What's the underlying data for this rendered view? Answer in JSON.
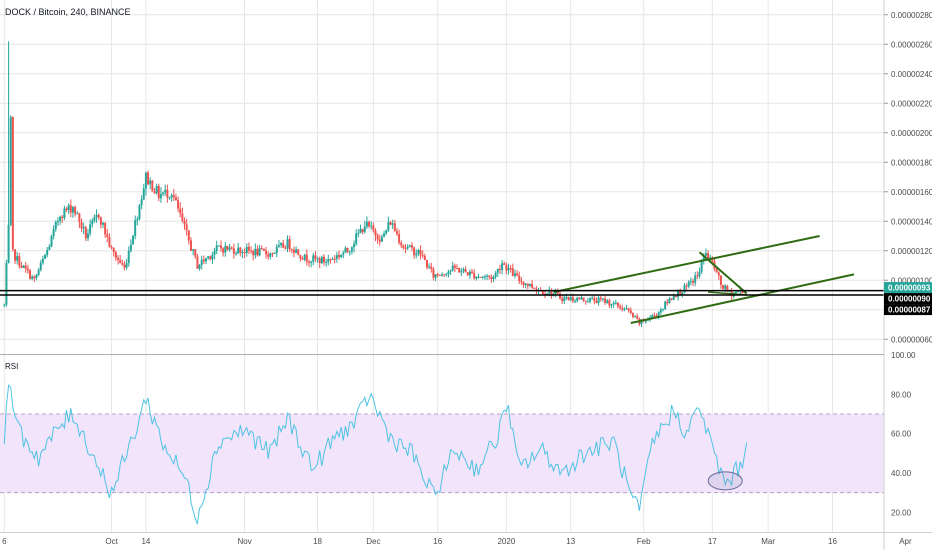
{
  "header": {
    "title": "DOCK / Bitcoin, 240, BINANCE"
  },
  "colors": {
    "up": "#26a69a",
    "down": "#ef5350",
    "grid": "#e6e6e6",
    "trendline": "#2e6b12",
    "hline": "#000000",
    "rsi_line": "#4fc3e3",
    "rsi_band": "#f1e4fb",
    "rsi_band_border": "#b8a0c8",
    "ellipse": "#6b6b9a",
    "current_tag": "#26a69a",
    "black_tag": "#000000"
  },
  "chart_data": [
    {
      "type": "candlestick",
      "title": "DOCK / Bitcoin, 240, BINANCE",
      "ylim": [
        5e-07,
        2.9e-06
      ],
      "yticks": [
        "0.00000060",
        "0.00000080",
        "0.00000100",
        "0.00000120",
        "0.00000140",
        "0.00000160",
        "0.00000180",
        "0.00000200",
        "0.00000220",
        "0.00000240",
        "0.00000260",
        "0.00000280"
      ],
      "xticks": [
        "6",
        "Oct",
        "14",
        "Nov",
        "18",
        "Dec",
        "16",
        "2020",
        "13",
        "Feb",
        "17",
        "Mar",
        "16",
        "Apr"
      ],
      "xlim_days": [
        -1,
        205
      ],
      "xtick_days": [
        0,
        25,
        33,
        56,
        73,
        86,
        101,
        117,
        132,
        149,
        165,
        178,
        193,
        210
      ],
      "keypoints": [
        {
          "t": 0,
          "p": 8.3e-07
        },
        {
          "t": 1,
          "p": 1.35e-06
        },
        {
          "t": 1.2,
          "p": 2.58e-06
        },
        {
          "t": 2,
          "p": 1.18e-06
        },
        {
          "t": 4,
          "p": 1.1e-06
        },
        {
          "t": 7,
          "p": 1e-06
        },
        {
          "t": 10,
          "p": 1.2e-06
        },
        {
          "t": 13,
          "p": 1.45e-06
        },
        {
          "t": 16,
          "p": 1.5e-06
        },
        {
          "t": 19,
          "p": 1.3e-06
        },
        {
          "t": 22,
          "p": 1.45e-06
        },
        {
          "t": 25,
          "p": 1.2e-06
        },
        {
          "t": 28,
          "p": 1.08e-06
        },
        {
          "t": 31,
          "p": 1.45e-06
        },
        {
          "t": 33,
          "p": 1.7e-06
        },
        {
          "t": 36,
          "p": 1.58e-06
        },
        {
          "t": 39,
          "p": 1.6e-06
        },
        {
          "t": 42,
          "p": 1.35e-06
        },
        {
          "t": 45,
          "p": 1.1e-06
        },
        {
          "t": 50,
          "p": 1.22e-06
        },
        {
          "t": 56,
          "p": 1.2e-06
        },
        {
          "t": 62,
          "p": 1.18e-06
        },
        {
          "t": 66,
          "p": 1.25e-06
        },
        {
          "t": 70,
          "p": 1.15e-06
        },
        {
          "t": 75,
          "p": 1.13e-06
        },
        {
          "t": 80,
          "p": 1.2e-06
        },
        {
          "t": 84,
          "p": 1.38e-06
        },
        {
          "t": 88,
          "p": 1.28e-06
        },
        {
          "t": 90,
          "p": 1.4e-06
        },
        {
          "t": 93,
          "p": 1.23e-06
        },
        {
          "t": 97,
          "p": 1.18e-06
        },
        {
          "t": 100,
          "p": 1.03e-06
        },
        {
          "t": 105,
          "p": 1.08e-06
        },
        {
          "t": 110,
          "p": 1.03e-06
        },
        {
          "t": 114,
          "p": 1.02e-06
        },
        {
          "t": 116,
          "p": 1.12e-06
        },
        {
          "t": 120,
          "p": 1e-06
        },
        {
          "t": 125,
          "p": 9.3e-07
        },
        {
          "t": 127,
          "p": 9.2e-07
        },
        {
          "t": 130,
          "p": 8.8e-07
        },
        {
          "t": 135,
          "p": 8.7e-07
        },
        {
          "t": 140,
          "p": 8.6e-07
        },
        {
          "t": 145,
          "p": 8e-07
        },
        {
          "t": 148,
          "p": 7.1e-07
        },
        {
          "t": 152,
          "p": 7.7e-07
        },
        {
          "t": 156,
          "p": 9e-07
        },
        {
          "t": 159,
          "p": 9.5e-07
        },
        {
          "t": 162,
          "p": 1.05e-06
        },
        {
          "t": 163,
          "p": 1.19e-06
        },
        {
          "t": 165,
          "p": 1.12e-06
        },
        {
          "t": 167,
          "p": 9.7e-07
        },
        {
          "t": 169,
          "p": 9.1e-07
        },
        {
          "t": 172,
          "p": 9.3e-07
        }
      ],
      "annotations": {
        "trend_upper": {
          "from": {
            "t": 128,
            "p": 9.2e-07
          },
          "to": {
            "t": 190,
            "p": 1.3e-06
          }
        },
        "trend_lower": {
          "from": {
            "t": 146,
            "p": 7.1e-07
          },
          "to": {
            "t": 198,
            "p": 1.04e-06
          }
        },
        "flag_upper": {
          "from": {
            "t": 162,
            "p": 1.19e-06
          },
          "to": {
            "t": 173,
            "p": 9.1e-07
          }
        },
        "flag_lower": {
          "from": {
            "t": 164,
            "p": 9.2e-07
          },
          "to": {
            "t": 173,
            "p": 9e-07
          }
        },
        "hlines": [
          9.3e-07,
          9e-07
        ]
      },
      "price_tags": [
        {
          "label": "0.00000093",
          "value": 9.3e-07,
          "style": "current"
        },
        {
          "label": "0.00000090",
          "value": 9e-07,
          "style": "black"
        },
        {
          "label": "0.00000087",
          "value": 8.7e-07,
          "style": "black"
        }
      ]
    },
    {
      "type": "line",
      "title": "RSI",
      "ylim": [
        10,
        100
      ],
      "yticks": [
        "20.00",
        "40.00",
        "60.00",
        "80.00",
        "100.00"
      ],
      "band": [
        30,
        70
      ],
      "ellipse_center": {
        "t": 168,
        "v": 36
      },
      "keypoints": [
        {
          "t": 0,
          "v": 55
        },
        {
          "t": 1.2,
          "v": 90
        },
        {
          "t": 3,
          "v": 62
        },
        {
          "t": 8,
          "v": 48
        },
        {
          "t": 13,
          "v": 64
        },
        {
          "t": 16,
          "v": 70
        },
        {
          "t": 20,
          "v": 52
        },
        {
          "t": 25,
          "v": 30
        },
        {
          "t": 30,
          "v": 58
        },
        {
          "t": 33,
          "v": 78
        },
        {
          "t": 37,
          "v": 55
        },
        {
          "t": 42,
          "v": 38
        },
        {
          "t": 45,
          "v": 18
        },
        {
          "t": 50,
          "v": 56
        },
        {
          "t": 56,
          "v": 62
        },
        {
          "t": 62,
          "v": 50
        },
        {
          "t": 66,
          "v": 68
        },
        {
          "t": 72,
          "v": 42
        },
        {
          "t": 77,
          "v": 58
        },
        {
          "t": 82,
          "v": 66
        },
        {
          "t": 85,
          "v": 80
        },
        {
          "t": 90,
          "v": 58
        },
        {
          "t": 95,
          "v": 50
        },
        {
          "t": 100,
          "v": 28
        },
        {
          "t": 105,
          "v": 52
        },
        {
          "t": 110,
          "v": 42
        },
        {
          "t": 115,
          "v": 58
        },
        {
          "t": 117,
          "v": 76
        },
        {
          "t": 120,
          "v": 42
        },
        {
          "t": 125,
          "v": 52
        },
        {
          "t": 130,
          "v": 40
        },
        {
          "t": 135,
          "v": 50
        },
        {
          "t": 142,
          "v": 56
        },
        {
          "t": 146,
          "v": 28
        },
        {
          "t": 148,
          "v": 20
        },
        {
          "t": 151,
          "v": 55
        },
        {
          "t": 156,
          "v": 72
        },
        {
          "t": 159,
          "v": 60
        },
        {
          "t": 162,
          "v": 74
        },
        {
          "t": 165,
          "v": 52
        },
        {
          "t": 168,
          "v": 34
        },
        {
          "t": 171,
          "v": 42
        },
        {
          "t": 173,
          "v": 52
        }
      ]
    }
  ]
}
